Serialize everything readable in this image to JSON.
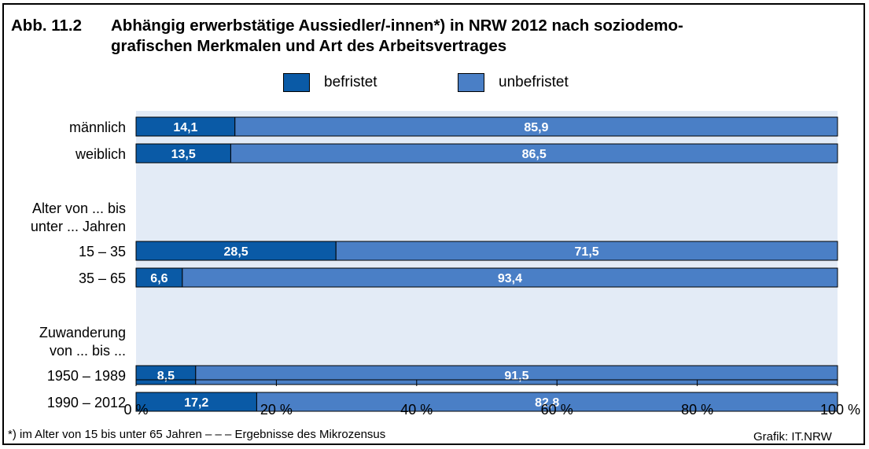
{
  "title": {
    "number": "Abb. 11.2",
    "line1": "Abhängig erwerbstätige Aussiedler/-innen*) in NRW 2012 nach soziodemo-",
    "line2": "grafischen Merkmalen und Art des Arbeitsvertrages"
  },
  "legend": [
    {
      "name": "befristet",
      "color": "#0a5aa6"
    },
    {
      "name": "unbefristet",
      "color": "#4a7fc6"
    }
  ],
  "footnote": "*) im Alter von 15 bis unter 65 Jahren – – – Ergebnisse des Mikrozensus",
  "credit": "Grafik: IT.NRW",
  "chart_data": {
    "type": "bar",
    "orientation": "horizontal",
    "stacked": true,
    "groups": [
      {
        "label_lines": [],
        "rows": [
          {
            "label": "männlich",
            "values": [
              14.1,
              85.9
            ],
            "display": [
              "14,1",
              "85,9"
            ]
          },
          {
            "label": "weiblich",
            "values": [
              13.5,
              86.5
            ],
            "display": [
              "13,5",
              "86,5"
            ]
          }
        ]
      },
      {
        "label_lines": [
          "Alter von ... bis",
          "unter ... Jahren"
        ],
        "rows": [
          {
            "label": "15 – 35",
            "values": [
              28.5,
              71.5
            ],
            "display": [
              "28,5",
              "71,5"
            ]
          },
          {
            "label": "35 – 65",
            "values": [
              6.6,
              93.4
            ],
            "display": [
              "6,6",
              "93,4"
            ]
          }
        ]
      },
      {
        "label_lines": [
          "Zuwanderung",
          "von ... bis ..."
        ],
        "rows": [
          {
            "label": "1950 – 1989",
            "values": [
              8.5,
              91.5
            ],
            "display": [
              "8,5",
              "91,5"
            ]
          },
          {
            "label": "1990 – 2012",
            "values": [
              17.2,
              82.8
            ],
            "display": [
              "17,2",
              "82,8"
            ]
          }
        ]
      }
    ],
    "xlim": [
      0,
      100
    ],
    "xticks": [
      "0 %",
      "20 %",
      "40 %",
      "60 %",
      "80 %",
      "100 %"
    ],
    "plot_background": "#e3ebf6"
  }
}
